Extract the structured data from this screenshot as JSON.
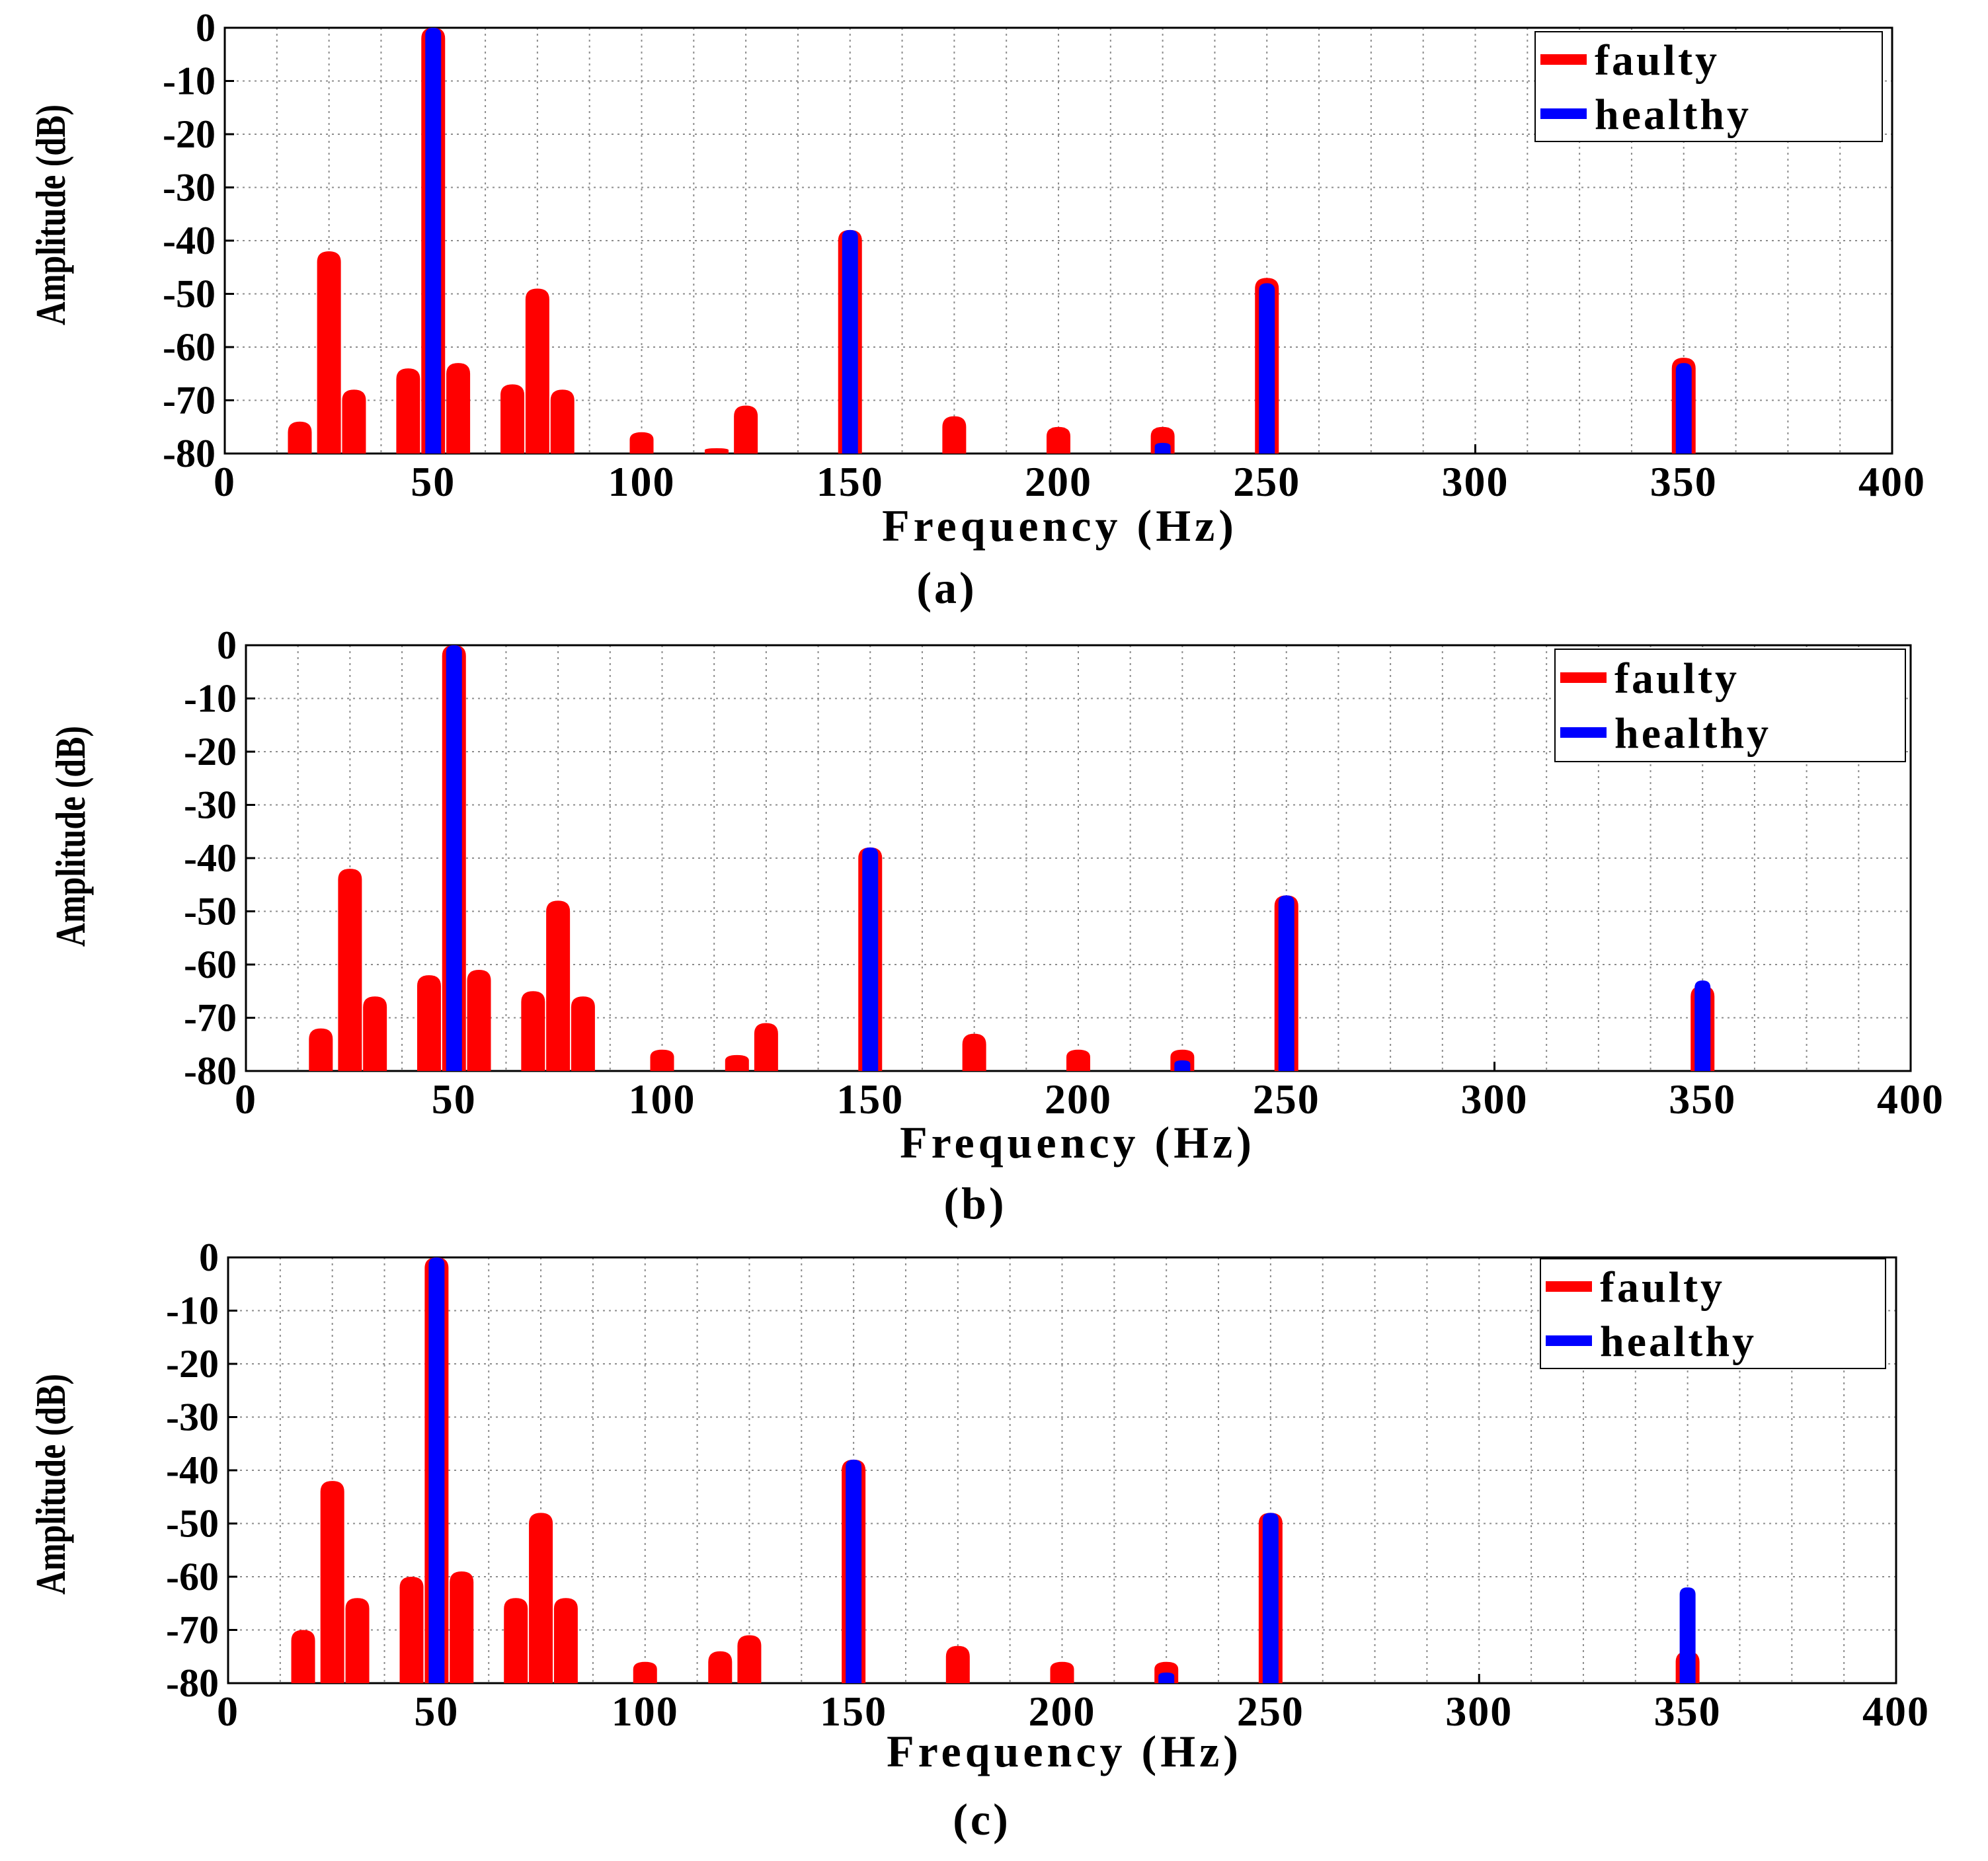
{
  "figure": {
    "panel_a_caption": "(a)",
    "panel_b_caption": "(b)",
    "panel_c_caption": "(c)"
  },
  "colors": {
    "faulty": "#ff0000",
    "healthy": "#0000ff"
  },
  "chart_data": [
    {
      "type": "area",
      "caption": "(a)",
      "title": "",
      "xlabel": "Frequency (Hz)",
      "ylabel": "Amplitude (dB)",
      "xlim": [
        0,
        400
      ],
      "ylim": [
        -80,
        0
      ],
      "xticks": [
        0,
        50,
        100,
        150,
        200,
        250,
        300,
        350,
        400
      ],
      "yticks": [
        0,
        -10,
        -20,
        -30,
        -40,
        -50,
        -60,
        -70,
        -80
      ],
      "grid": true,
      "legend_position": "top-right",
      "series": [
        {
          "name": "faulty",
          "color": "#ff0000",
          "peaks": [
            [
              18,
              -74
            ],
            [
              25,
              -42
            ],
            [
              31,
              -68
            ],
            [
              44,
              -64
            ],
            [
              50,
              0
            ],
            [
              56,
              -63
            ],
            [
              69,
              -67
            ],
            [
              75,
              -49
            ],
            [
              81,
              -68
            ],
            [
              100,
              -76
            ],
            [
              118,
              -79
            ],
            [
              125,
              -71
            ],
            [
              150,
              -38
            ],
            [
              175,
              -73
            ],
            [
              200,
              -75
            ],
            [
              225,
              -75
            ],
            [
              250,
              -47
            ],
            [
              350,
              -62
            ]
          ]
        },
        {
          "name": "healthy",
          "color": "#0000ff",
          "peaks": [
            [
              50,
              0
            ],
            [
              150,
              -38
            ],
            [
              225,
              -78
            ],
            [
              250,
              -48
            ],
            [
              350,
              -63
            ]
          ]
        }
      ]
    },
    {
      "type": "area",
      "caption": "(b)",
      "title": "",
      "xlabel": "Frequency (Hz)",
      "ylabel": "Amplitude (dB)",
      "xlim": [
        0,
        400
      ],
      "ylim": [
        -80,
        0
      ],
      "xticks": [
        0,
        50,
        100,
        150,
        200,
        250,
        300,
        350,
        400
      ],
      "yticks": [
        0,
        -10,
        -20,
        -30,
        -40,
        -50,
        -60,
        -70,
        -80
      ],
      "grid": true,
      "legend_position": "top-right",
      "series": [
        {
          "name": "faulty",
          "color": "#ff0000",
          "peaks": [
            [
              18,
              -72
            ],
            [
              25,
              -42
            ],
            [
              31,
              -66
            ],
            [
              44,
              -62
            ],
            [
              50,
              0
            ],
            [
              56,
              -61
            ],
            [
              69,
              -65
            ],
            [
              75,
              -48
            ],
            [
              81,
              -66
            ],
            [
              100,
              -76
            ],
            [
              118,
              -77
            ],
            [
              125,
              -71
            ],
            [
              150,
              -38
            ],
            [
              175,
              -73
            ],
            [
              200,
              -76
            ],
            [
              225,
              -76
            ],
            [
              250,
              -47
            ],
            [
              350,
              -64
            ]
          ]
        },
        {
          "name": "healthy",
          "color": "#0000ff",
          "peaks": [
            [
              50,
              0
            ],
            [
              150,
              -38
            ],
            [
              225,
              -78
            ],
            [
              250,
              -47
            ],
            [
              350,
              -63
            ]
          ]
        }
      ]
    },
    {
      "type": "area",
      "caption": "(c)",
      "title": "",
      "xlabel": "Frequency (Hz)",
      "ylabel": "Amplitude (dB)",
      "xlim": [
        0,
        400
      ],
      "ylim": [
        -80,
        0
      ],
      "xticks": [
        0,
        50,
        100,
        150,
        200,
        250,
        300,
        350,
        400
      ],
      "yticks": [
        0,
        -10,
        -20,
        -30,
        -40,
        -50,
        -60,
        -70,
        -80
      ],
      "grid": true,
      "legend_position": "top-right",
      "series": [
        {
          "name": "faulty",
          "color": "#ff0000",
          "peaks": [
            [
              18,
              -70
            ],
            [
              25,
              -42
            ],
            [
              31,
              -64
            ],
            [
              44,
              -60
            ],
            [
              50,
              0
            ],
            [
              56,
              -59
            ],
            [
              69,
              -64
            ],
            [
              75,
              -48
            ],
            [
              81,
              -64
            ],
            [
              100,
              -76
            ],
            [
              118,
              -74
            ],
            [
              125,
              -71
            ],
            [
              150,
              -38
            ],
            [
              175,
              -73
            ],
            [
              200,
              -76
            ],
            [
              225,
              -76
            ],
            [
              250,
              -48
            ],
            [
              350,
              -74
            ]
          ]
        },
        {
          "name": "healthy",
          "color": "#0000ff",
          "peaks": [
            [
              50,
              0
            ],
            [
              150,
              -38
            ],
            [
              225,
              -78
            ],
            [
              250,
              -48
            ],
            [
              350,
              -62
            ]
          ]
        }
      ]
    }
  ]
}
